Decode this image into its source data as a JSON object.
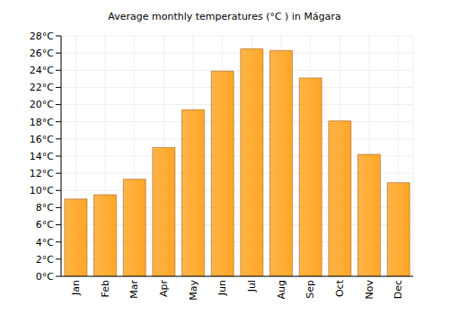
{
  "chart_data": {
    "type": "bar",
    "title": "Average monthly temperatures (°C ) in Mágara",
    "categories": [
      "Jan",
      "Feb",
      "Mar",
      "Apr",
      "May",
      "Jun",
      "Jul",
      "Aug",
      "Sep",
      "Oct",
      "Nov",
      "Dec"
    ],
    "values": [
      9,
      9.5,
      11.3,
      15,
      19.4,
      23.9,
      26.5,
      26.3,
      23.1,
      18.1,
      14.2,
      10.9
    ],
    "color": "#ffa726",
    "ylim": [
      0,
      28
    ],
    "yticks": [
      {
        "value": 0,
        "label": "0°C"
      },
      {
        "value": 2,
        "label": "2°C"
      },
      {
        "value": 4,
        "label": "4°C"
      },
      {
        "value": 6,
        "label": "6°C"
      },
      {
        "value": 8,
        "label": "8°C"
      },
      {
        "value": 10,
        "label": "10°C"
      },
      {
        "value": 12,
        "label": "12°C"
      },
      {
        "value": 14,
        "label": "14°C"
      },
      {
        "value": 16,
        "label": "16°C"
      },
      {
        "value": 18,
        "label": "18°C"
      },
      {
        "value": 20,
        "label": "20°C"
      },
      {
        "value": 22,
        "label": "22°C"
      },
      {
        "value": 24,
        "label": "24°C"
      },
      {
        "value": 26,
        "label": "26°C"
      },
      {
        "value": 28,
        "label": "28°C"
      }
    ],
    "grid": true
  }
}
